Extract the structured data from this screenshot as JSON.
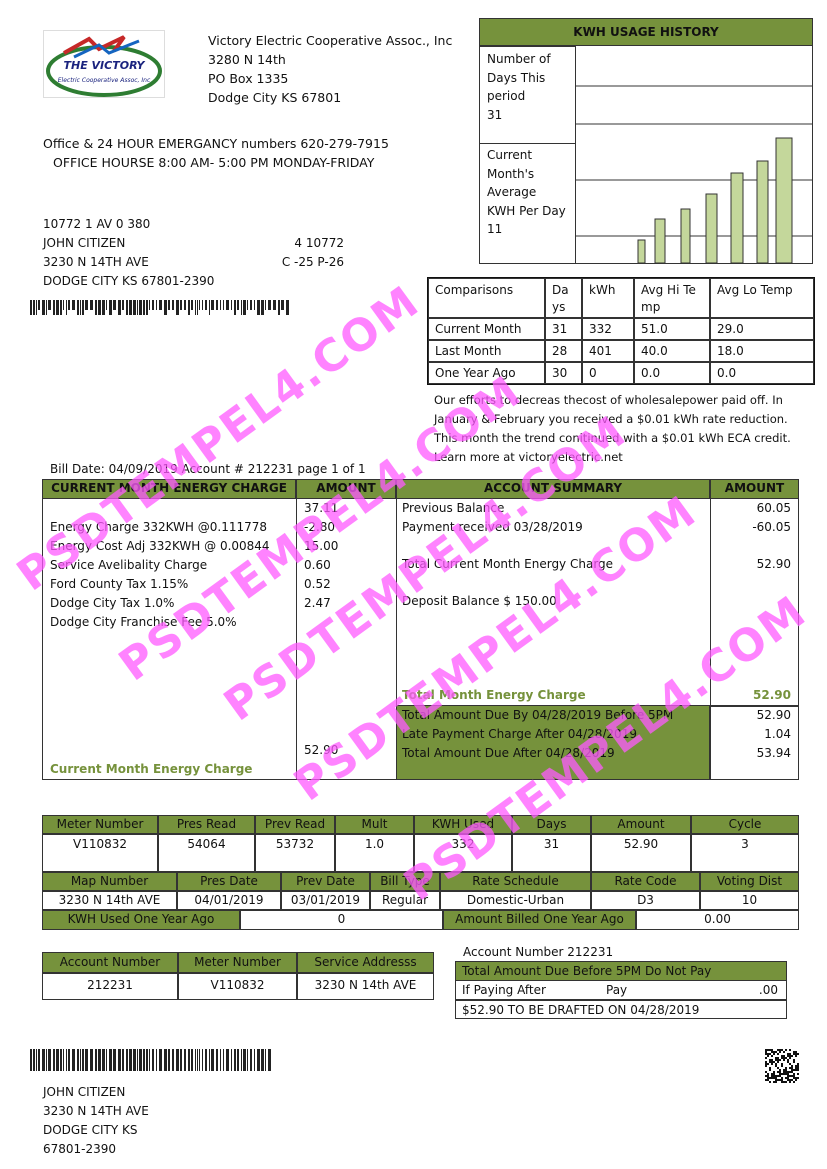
{
  "logo": {
    "name": "THE VICTORY",
    "sub": "Electric Cooperative Assoc, Inc"
  },
  "company": [
    "Victory Electric Cooperative  Assoc., Inc",
    "3280 N 14th",
    "PO Box 1335",
    "Dodge City KS 67801"
  ],
  "office_line": "Office & 24 HOUR EMERGANCY numbers 620-279-7915",
  "hours_line": "OFFICE HOURSE 8:00 AM- 5:00 PM MONDAY-FRIDAY",
  "customer": {
    "lines": [
      "10772 1 AV 0 380",
      "JOHN CITIZEN",
      "3230 N 14TH AVE",
      "DODGE CITY KS 67801-2390"
    ],
    "codes": [
      "4 10772",
      "C -25   P-26"
    ]
  },
  "kwh_history": {
    "title": "KWH USAGE HISTORY",
    "days_label": "Number of Days This period",
    "days": 31,
    "avg_label": "Current Month's Average KWH Per Day",
    "avg": 11
  },
  "comparisons": {
    "headers": [
      "Comparisons",
      "Days",
      "kWh",
      "Avg Hi Temp",
      "Avg Lo Temp"
    ],
    "rows": [
      [
        "Current Month",
        31,
        332,
        "51.0",
        "29.0"
      ],
      [
        "Last Month",
        28,
        401,
        "40.0",
        "18.0"
      ],
      [
        "One Year Ago",
        30,
        0,
        "0.0",
        "0.0"
      ]
    ]
  },
  "note": [
    "Our efforts to decreas thecost of wholesalepower paid off. In",
    "January & February you received a $0.01 kWh rate reduction.",
    "This month the trend conitinued with a $0.01 kWh ECA credit.",
    "Learn more at victoryelectric.net"
  ],
  "bill_line": "Bill Date: 04/09/2019 Account # 212231    page 1 of 1",
  "charges": {
    "headers": [
      "CURRENT MONTH ENERGY CHARGE",
      "AMOUNT"
    ],
    "labels": [
      null,
      "Energy Charge    332KWH @0.111778",
      "Energy Cost Adj 332KWH @ 0.00844",
      "Service Avelibality Charge",
      "Ford County Tax  1.15%",
      "Dodge City Tax   1.0%",
      "Dodge City Franchise Fee 5.0%"
    ],
    "amounts": [
      "37.11",
      "-2.80",
      "15.00",
      "0.60",
      "0.52",
      "2.47",
      null
    ],
    "total_label": "Current Month Energy Charge",
    "total": "52.90"
  },
  "summary": {
    "headers": [
      "ACCOUNT SUMMARY",
      "AMOUNT"
    ],
    "rows": [
      [
        "Previous Balance",
        "60.05"
      ],
      [
        "Payment received 03/28/2019",
        "-60.05"
      ],
      [
        "Total Current Month Energy Charge",
        "52.90"
      ],
      [
        "Deposit Balance $ 150.00",
        null
      ]
    ],
    "total_label": "Total Month Energy Charge",
    "total": "52.90",
    "due": [
      [
        "Total Amount Due By 04/28/2019 Before 5PM",
        "52.90"
      ],
      [
        "Late Payment Charge After 04/28/2019",
        "1.04"
      ],
      [
        "Total Amount Due After 04/28/2019",
        "53.94"
      ]
    ]
  },
  "meter": {
    "headers1": [
      "Meter Number",
      "Pres Read",
      "Prev Read",
      "Mult",
      "KWH Used",
      "Days",
      "Amount",
      "Cycle"
    ],
    "values1": [
      "V110832",
      54064,
      53732,
      "1.0",
      332,
      31,
      "52.90",
      3
    ],
    "headers2": [
      "Map Number",
      "Pres Date",
      "Prev Date",
      "Bill Type",
      "Rate Schedule",
      "Rate Code",
      "Voting Dist"
    ],
    "values2": [
      "3230 N 14th AVE",
      "04/01/2019",
      "03/01/2019",
      "Regular",
      "Domestic-Urban",
      "D3",
      10
    ],
    "row3": [
      "KWH Used One Year Ago",
      0,
      "Amount Billed One Year Ago",
      "0.00"
    ]
  },
  "stub": {
    "headers": [
      "Account Number",
      "Meter Number",
      "Service Addresss"
    ],
    "values": [
      212231,
      "V110832",
      "3230 N 14th AVE"
    ]
  },
  "remit": {
    "account": "Account Number 212231",
    "due_title": "Total Amount Due Before 5PM Do Not Pay",
    "if_paying": "If Paying After",
    "pay": "Pay",
    "pay_amount": ".00",
    "drafted": "$52.90 TO BE DRAFTED ON 04/28/2019"
  },
  "mailing": [
    "JOHN CITIZEN",
    "3230 N 14TH AVE",
    "DODGE CITY KS",
    "67801-2390"
  ],
  "watermark": "PSDTEMPEL4.COM"
}
